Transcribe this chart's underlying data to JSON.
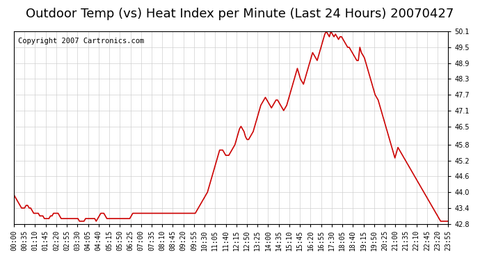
{
  "title": "Outdoor Temp (vs) Heat Index per Minute (Last 24 Hours) 20070427",
  "copyright": "Copyright 2007 Cartronics.com",
  "line_color": "#cc0000",
  "bg_color": "#ffffff",
  "plot_bg_color": "#ffffff",
  "grid_color": "#cccccc",
  "ylim": [
    42.8,
    50.1
  ],
  "yticks": [
    42.8,
    43.4,
    44.0,
    44.6,
    45.2,
    45.8,
    46.5,
    47.1,
    47.7,
    48.3,
    48.9,
    49.5,
    50.1
  ],
  "xtick_labels": [
    "00:00",
    "00:35",
    "01:10",
    "01:45",
    "02:20",
    "02:55",
    "03:30",
    "04:05",
    "04:40",
    "05:15",
    "05:50",
    "06:25",
    "07:00",
    "07:35",
    "08:10",
    "08:45",
    "09:20",
    "09:55",
    "10:30",
    "11:05",
    "11:40",
    "12:15",
    "12:50",
    "13:25",
    "14:00",
    "14:35",
    "15:10",
    "15:45",
    "16:20",
    "16:55",
    "17:30",
    "18:05",
    "18:40",
    "19:15",
    "19:50",
    "20:25",
    "21:00",
    "21:35",
    "22:10",
    "22:45",
    "23:20",
    "23:55"
  ],
  "title_fontsize": 13,
  "copyright_fontsize": 7.5,
  "tick_fontsize": 7,
  "line_width": 1.2,
  "data_y": [
    43.9,
    43.8,
    43.7,
    43.6,
    43.5,
    43.4,
    43.4,
    43.4,
    43.5,
    43.5,
    43.4,
    43.4,
    43.3,
    43.2,
    43.2,
    43.2,
    43.2,
    43.1,
    43.1,
    43.1,
    43.0,
    43.0,
    43.0,
    43.0,
    43.1,
    43.1,
    43.2,
    43.2,
    43.2,
    43.2,
    43.1,
    43.0,
    43.0,
    43.0,
    43.0,
    43.0,
    43.0,
    43.0,
    43.0,
    43.0,
    43.0,
    43.0,
    43.0,
    42.9,
    42.9,
    42.9,
    42.9,
    43.0,
    43.0,
    43.0,
    43.0,
    43.0,
    43.0,
    43.0,
    42.9,
    43.0,
    43.1,
    43.2,
    43.2,
    43.2,
    43.1,
    43.0,
    43.0,
    43.0,
    43.0,
    43.0,
    43.0,
    43.0,
    43.0,
    43.0,
    43.0,
    43.0,
    43.0,
    43.0,
    43.0,
    43.0,
    43.0,
    43.1,
    43.2,
    43.2,
    43.2,
    43.2,
    43.2,
    43.2,
    43.2,
    43.2,
    43.2,
    43.2,
    43.2,
    43.2,
    43.2,
    43.2,
    43.2,
    43.2,
    43.2,
    43.2,
    43.2,
    43.2,
    43.2,
    43.2,
    43.2,
    43.2,
    43.2,
    43.2,
    43.2,
    43.2,
    43.2,
    43.2,
    43.2,
    43.2,
    43.2,
    43.2,
    43.2,
    43.2,
    43.2,
    43.2,
    43.2,
    43.2,
    43.2,
    43.2,
    43.3,
    43.4,
    43.5,
    43.6,
    43.7,
    43.8,
    43.9,
    44.0,
    44.2,
    44.4,
    44.6,
    44.8,
    45.0,
    45.2,
    45.4,
    45.6,
    45.6,
    45.6,
    45.5,
    45.4,
    45.4,
    45.4,
    45.5,
    45.6,
    45.7,
    45.8,
    46.0,
    46.2,
    46.4,
    46.5,
    46.4,
    46.3,
    46.1,
    46.0,
    46.0,
    46.1,
    46.2,
    46.3,
    46.5,
    46.7,
    46.9,
    47.1,
    47.3,
    47.4,
    47.5,
    47.6,
    47.5,
    47.4,
    47.3,
    47.2,
    47.3,
    47.4,
    47.5,
    47.5,
    47.4,
    47.3,
    47.2,
    47.1,
    47.2,
    47.3,
    47.5,
    47.7,
    47.9,
    48.1,
    48.3,
    48.5,
    48.7,
    48.5,
    48.3,
    48.2,
    48.1,
    48.3,
    48.5,
    48.7,
    48.9,
    49.1,
    49.3,
    49.2,
    49.1,
    49.0,
    49.2,
    49.4,
    49.6,
    49.8,
    50.0,
    50.1,
    50.0,
    49.9,
    50.1,
    50.0,
    49.9,
    50.0,
    49.9,
    49.8,
    49.9,
    49.9,
    49.8,
    49.7,
    49.6,
    49.5,
    49.5,
    49.4,
    49.3,
    49.2,
    49.1,
    49.0,
    49.0,
    49.5,
    49.3,
    49.2,
    49.1,
    48.9,
    48.7,
    48.5,
    48.3,
    48.1,
    47.9,
    47.7,
    47.6,
    47.5,
    47.3,
    47.1,
    46.9,
    46.7,
    46.5,
    46.3,
    46.1,
    45.9,
    45.7,
    45.5,
    45.3,
    45.5,
    45.7,
    45.6,
    45.5,
    45.4,
    45.3,
    45.2,
    45.1,
    45.0,
    44.9,
    44.8,
    44.7,
    44.6,
    44.5,
    44.4,
    44.3,
    44.2,
    44.1,
    44.0,
    43.9,
    43.8,
    43.7,
    43.6,
    43.5,
    43.4,
    43.3,
    43.2,
    43.1,
    43.0,
    42.9,
    42.9,
    42.9,
    42.9,
    42.9,
    42.9
  ]
}
